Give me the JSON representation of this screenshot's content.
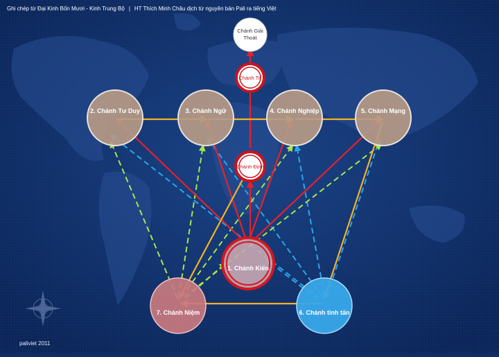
{
  "header": {
    "left": "Ghi chép từ Đại Kinh Bốn Mươi - Kinh Trung Bộ",
    "separator": "|",
    "right": "HT Thích Minh Châu dịch từ nguyên bản Pali ra tiếng Việt"
  },
  "footer": {
    "credit": "paliviet 2011"
  },
  "nodes": {
    "chanh_giai_thoat": {
      "line1": "Chánh Giải",
      "line2": "Thoát"
    },
    "chanh_tri": {
      "label": "Chánh Trí"
    },
    "chanh_dinh": {
      "label": "Chánh Định"
    },
    "chanh_tu_duy": {
      "label": "2. Chánh Tư Duy"
    },
    "chanh_ngu": {
      "label": "3. Chánh Ngữ"
    },
    "chanh_nghiep": {
      "label": "4. Chánh Nghiệp"
    },
    "chanh_mang": {
      "label": "5. Chánh Mạng"
    },
    "chanh_kien": {
      "label": "1. Chánh Kiến"
    },
    "chanh_niem": {
      "label": "7. Chánh Niệm"
    },
    "chanh_tinh_tan": {
      "label": "6. Chánh tinh tấn"
    }
  },
  "colors": {
    "background": "#0f2e68",
    "red_arrow": "#e8202a",
    "yellow_arrow": "#f5b324",
    "green_dashed": "#a8e84a",
    "blue_dashed": "#2aa8e8",
    "tan_node": "#b69a86",
    "pink_node": "#c97a7f",
    "blue_node": "#38a8ea"
  }
}
